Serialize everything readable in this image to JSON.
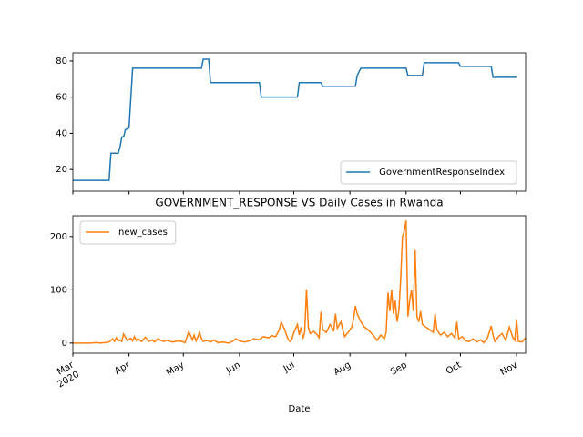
{
  "chart_data": [
    {
      "type": "line",
      "legend": "lower right",
      "x": [
        0,
        20,
        21,
        25,
        26,
        27,
        28,
        29,
        31,
        33,
        71,
        72,
        75,
        76,
        103,
        104,
        124,
        125,
        137,
        138,
        156,
        157,
        159,
        184,
        185,
        193,
        194,
        213,
        214,
        231,
        232,
        245
      ],
      "series": [
        {
          "name": "GovernmentResponseIndex",
          "color": "#1f77b4",
          "values": [
            14,
            14,
            29,
            29,
            32,
            38,
            38,
            42,
            43,
            76,
            76,
            81,
            81,
            68,
            68,
            60,
            60,
            68,
            68,
            66,
            66,
            72,
            76,
            76,
            72,
            72,
            79,
            79,
            77,
            77,
            71,
            71
          ]
        }
      ],
      "xlim": [
        0,
        250
      ],
      "ylim": [
        8,
        84.5
      ],
      "yticks": [
        20,
        40,
        60,
        80
      ]
    },
    {
      "type": "line",
      "title": "GOVERNMENT_RESPONSE VS Daily Cases in Rwanda",
      "x_label": "Date",
      "legend": "upper left",
      "x": [
        0,
        5,
        10,
        13,
        15,
        18,
        20,
        22,
        23,
        24,
        25,
        26,
        27,
        28,
        30,
        32,
        33,
        34,
        35,
        36,
        38,
        40,
        42,
        44,
        45,
        47,
        50,
        52,
        55,
        58,
        60,
        62,
        64,
        66,
        67,
        68,
        70,
        71,
        72,
        74,
        76,
        78,
        80,
        83,
        86,
        88,
        90,
        92,
        95,
        98,
        100,
        103,
        105,
        108,
        110,
        112,
        114,
        115,
        117,
        118,
        119,
        120,
        121,
        122,
        124,
        125,
        126,
        127,
        128,
        129,
        130,
        131,
        133,
        135,
        136,
        137,
        138,
        140,
        142,
        143,
        144,
        145,
        146,
        148,
        150,
        152,
        154,
        155,
        156,
        157,
        159,
        161,
        163,
        165,
        167,
        168,
        170,
        172,
        173,
        174,
        175,
        176,
        177,
        178,
        179,
        180,
        181,
        182,
        183,
        184,
        185,
        186,
        187,
        188,
        189,
        190,
        191,
        192,
        193,
        195,
        197,
        199,
        200,
        201,
        203,
        205,
        207,
        209,
        211,
        212,
        213,
        215,
        217,
        219,
        221,
        223,
        225,
        227,
        229,
        231,
        232,
        233,
        235,
        237,
        239,
        241,
        243,
        244,
        245,
        246,
        248,
        250
      ],
      "series": [
        {
          "name": "new_cases",
          "color": "#ff7f0e",
          "values": [
            0,
            0,
            0,
            1,
            0,
            1,
            2,
            8,
            3,
            10,
            4,
            6,
            3,
            17,
            5,
            9,
            4,
            12,
            5,
            8,
            3,
            11,
            3,
            6,
            2,
            8,
            3,
            5,
            2,
            4,
            3,
            1,
            22,
            6,
            15,
            4,
            20,
            8,
            3,
            5,
            2,
            6,
            1,
            2,
            0,
            3,
            8,
            4,
            2,
            5,
            8,
            6,
            12,
            10,
            14,
            12,
            25,
            40,
            25,
            15,
            6,
            3,
            8,
            20,
            35,
            15,
            30,
            8,
            20,
            101,
            30,
            18,
            22,
            15,
            10,
            59,
            25,
            20,
            35,
            30,
            22,
            55,
            28,
            40,
            12,
            20,
            30,
            45,
            70,
            55,
            40,
            30,
            25,
            18,
            10,
            5,
            15,
            8,
            20,
            95,
            60,
            100,
            55,
            80,
            40,
            60,
            120,
            200,
            210,
            230,
            50,
            80,
            100,
            60,
            175,
            50,
            40,
            60,
            35,
            30,
            25,
            20,
            55,
            25,
            15,
            20,
            12,
            18,
            10,
            40,
            8,
            12,
            4,
            3,
            8,
            2,
            6,
            1,
            10,
            32,
            15,
            3,
            12,
            18,
            5,
            30,
            10,
            5,
            45,
            3,
            2,
            10
          ]
        }
      ],
      "xlim": [
        0,
        250
      ],
      "ylim": [
        -19,
        239
      ],
      "yticks": [
        0,
        100,
        200
      ],
      "xticks": [
        {
          "value": 0,
          "label": "Mar\n2020"
        },
        {
          "value": 31,
          "label": "Apr"
        },
        {
          "value": 61,
          "label": "May"
        },
        {
          "value": 92,
          "label": "Jun"
        },
        {
          "value": 122,
          "label": "Jul"
        },
        {
          "value": 153,
          "label": "Aug"
        },
        {
          "value": 184,
          "label": "Sep"
        },
        {
          "value": 214,
          "label": "Oct"
        },
        {
          "value": 245,
          "label": "Nov"
        }
      ]
    }
  ]
}
